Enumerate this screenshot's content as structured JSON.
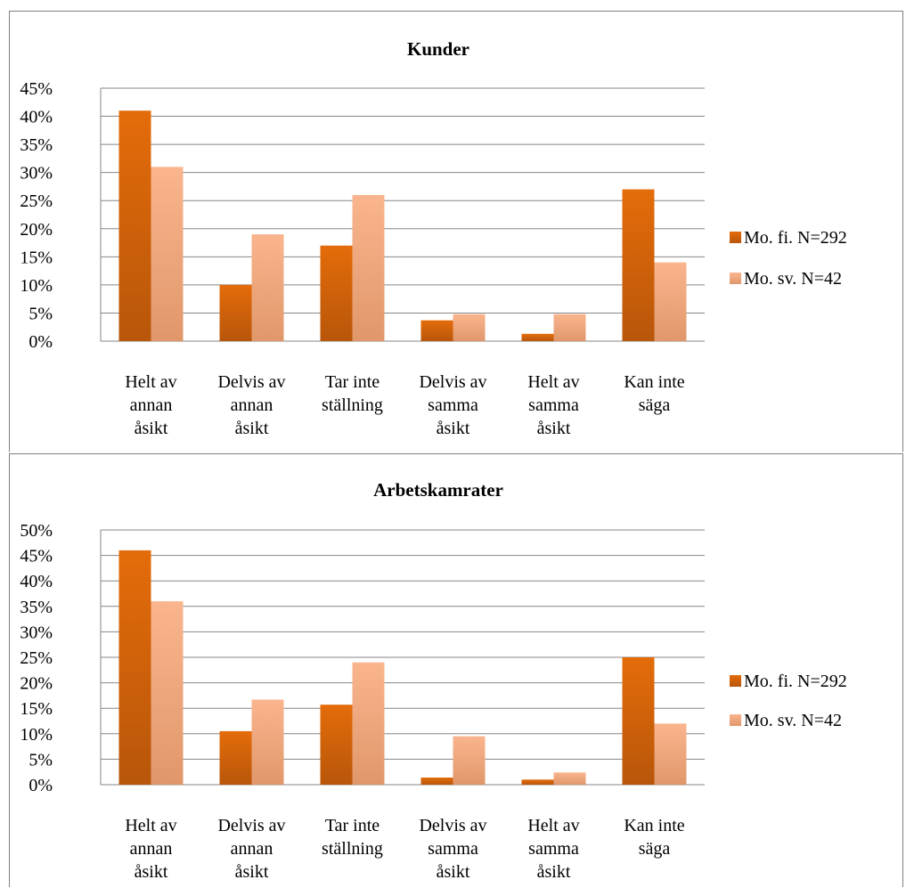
{
  "chart_data": [
    {
      "type": "bar",
      "title": "Kunder",
      "categories": [
        [
          "Helt av",
          "annan",
          "åsikt"
        ],
        [
          "Delvis av",
          "annan",
          "åsikt"
        ],
        [
          "Tar inte",
          "ställning"
        ],
        [
          "Delvis av",
          "samma",
          "åsikt"
        ],
        [
          "Helt av",
          "samma",
          "åsikt"
        ],
        [
          "Kan inte",
          "säga"
        ]
      ],
      "series": [
        {
          "name": "Mo. fi. N=292",
          "values": [
            41,
            10,
            17,
            3.7,
            1.3,
            27
          ]
        },
        {
          "name": "Mo. sv. N=42",
          "values": [
            31,
            19,
            26,
            4.8,
            4.8,
            14
          ]
        }
      ],
      "yticks": [
        "0%",
        "5%",
        "10%",
        "15%",
        "20%",
        "25%",
        "30%",
        "35%",
        "40%",
        "45%"
      ],
      "ylim": [
        0,
        45
      ],
      "legend_position": "right",
      "grid": true,
      "colors": [
        "#E46C0A",
        "#FAB58E"
      ]
    },
    {
      "type": "bar",
      "title": "Arbetskamrater",
      "categories": [
        [
          "Helt av",
          "annan",
          "åsikt"
        ],
        [
          "Delvis av",
          "annan",
          "åsikt"
        ],
        [
          "Tar inte",
          "ställning"
        ],
        [
          "Delvis av",
          "samma",
          "åsikt"
        ],
        [
          "Helt av",
          "samma",
          "åsikt"
        ],
        [
          "Kan inte",
          "säga"
        ]
      ],
      "series": [
        {
          "name": "Mo. fi. N=292",
          "values": [
            46,
            10.5,
            15.7,
            1.4,
            1,
            25
          ]
        },
        {
          "name": "Mo. sv. N=42",
          "values": [
            36,
            16.7,
            24,
            9.5,
            2.4,
            12
          ]
        }
      ],
      "yticks": [
        "0%",
        "5%",
        "10%",
        "15%",
        "20%",
        "25%",
        "30%",
        "35%",
        "40%",
        "45%",
        "50%"
      ],
      "ylim": [
        0,
        50
      ],
      "legend_position": "right",
      "grid": true,
      "colors": [
        "#E46C0A",
        "#FAB58E"
      ]
    }
  ]
}
